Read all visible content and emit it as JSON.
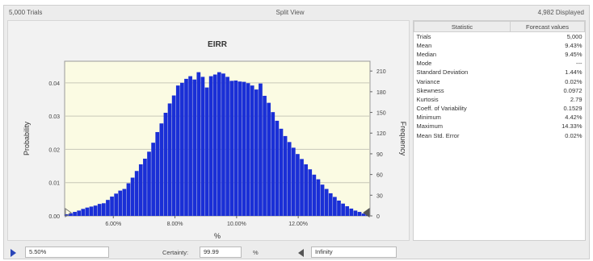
{
  "header": {
    "trials_label": "5,000 Trials",
    "view_label": "Split View",
    "displayed_label": "4,982 Displayed"
  },
  "chart_data": {
    "type": "bar",
    "title": "EIRR",
    "xlabel": "%",
    "ylabel": "Probability",
    "y2label": "Frequency",
    "xticks": [
      "6.00%",
      "8.00%",
      "10.00%",
      "12.00%"
    ],
    "xtick_values": [
      6.0,
      8.0,
      10.0,
      12.0
    ],
    "xlim": [
      4.42,
      14.33
    ],
    "yticks": [
      "0.00",
      "0.01",
      "0.02",
      "0.03",
      "0.04"
    ],
    "ytick_values": [
      0.0,
      0.01,
      0.02,
      0.03,
      0.04
    ],
    "ylim": [
      0,
      0.0465
    ],
    "y2ticks": [
      "0",
      "30",
      "60",
      "90",
      "120",
      "150",
      "180",
      "210"
    ],
    "y2tick_values": [
      0,
      30,
      60,
      90,
      120,
      150,
      180,
      210
    ],
    "grid": true,
    "bar_color": "#1a2fd6",
    "bin_edges": [
      4.42,
      14.33
    ],
    "values": [
      0.0005,
      0.0008,
      0.0012,
      0.0016,
      0.0021,
      0.0025,
      0.0028,
      0.0031,
      0.0036,
      0.0038,
      0.0048,
      0.0058,
      0.0067,
      0.0076,
      0.0081,
      0.0098,
      0.0115,
      0.0135,
      0.0155,
      0.0172,
      0.0193,
      0.022,
      0.0252,
      0.0278,
      0.031,
      0.0338,
      0.0362,
      0.0392,
      0.04,
      0.0412,
      0.042,
      0.041,
      0.0432,
      0.0418,
      0.0386,
      0.042,
      0.0425,
      0.0432,
      0.0428,
      0.0418,
      0.0406,
      0.0407,
      0.0404,
      0.0403,
      0.0399,
      0.0392,
      0.038,
      0.0398,
      0.0361,
      0.034,
      0.0312,
      0.0286,
      0.0262,
      0.024,
      0.0222,
      0.0205,
      0.0186,
      0.0171,
      0.0155,
      0.014,
      0.0124,
      0.011,
      0.0094,
      0.0081,
      0.0068,
      0.0057,
      0.0046,
      0.0037,
      0.0029,
      0.0022,
      0.0016,
      0.0012,
      0.0007,
      0.0004
    ]
  },
  "stats": {
    "headers": [
      "Statistic",
      "Forecast values"
    ],
    "rows": [
      {
        "label": "Trials",
        "value": "5,000"
      },
      {
        "label": "Mean",
        "value": "9.43%"
      },
      {
        "label": "Median",
        "value": "9.45%"
      },
      {
        "label": "Mode",
        "value": "---"
      },
      {
        "label": "Standard Deviation",
        "value": "1.44%"
      },
      {
        "label": "Variance",
        "value": "0.02%"
      },
      {
        "label": "Skewness",
        "value": "0.0972"
      },
      {
        "label": "Kurtosis",
        "value": "2.79"
      },
      {
        "label": "Coeff. of Variability",
        "value": "0.1529"
      },
      {
        "label": "Minimum",
        "value": "4.42%"
      },
      {
        "label": "Maximum",
        "value": "14.33%"
      },
      {
        "label": "Mean Std. Error",
        "value": "0.02%"
      }
    ]
  },
  "certainty": {
    "left_value": "5.50%",
    "label": "Certainty:",
    "value": "99.99",
    "unit": "%",
    "right_value": "Infinity"
  },
  "colors": {
    "plot_background": "#fbfbe3",
    "gridline": "#c8c8b8",
    "left_marker": "#2a46b8",
    "right_marker": "#555555"
  }
}
